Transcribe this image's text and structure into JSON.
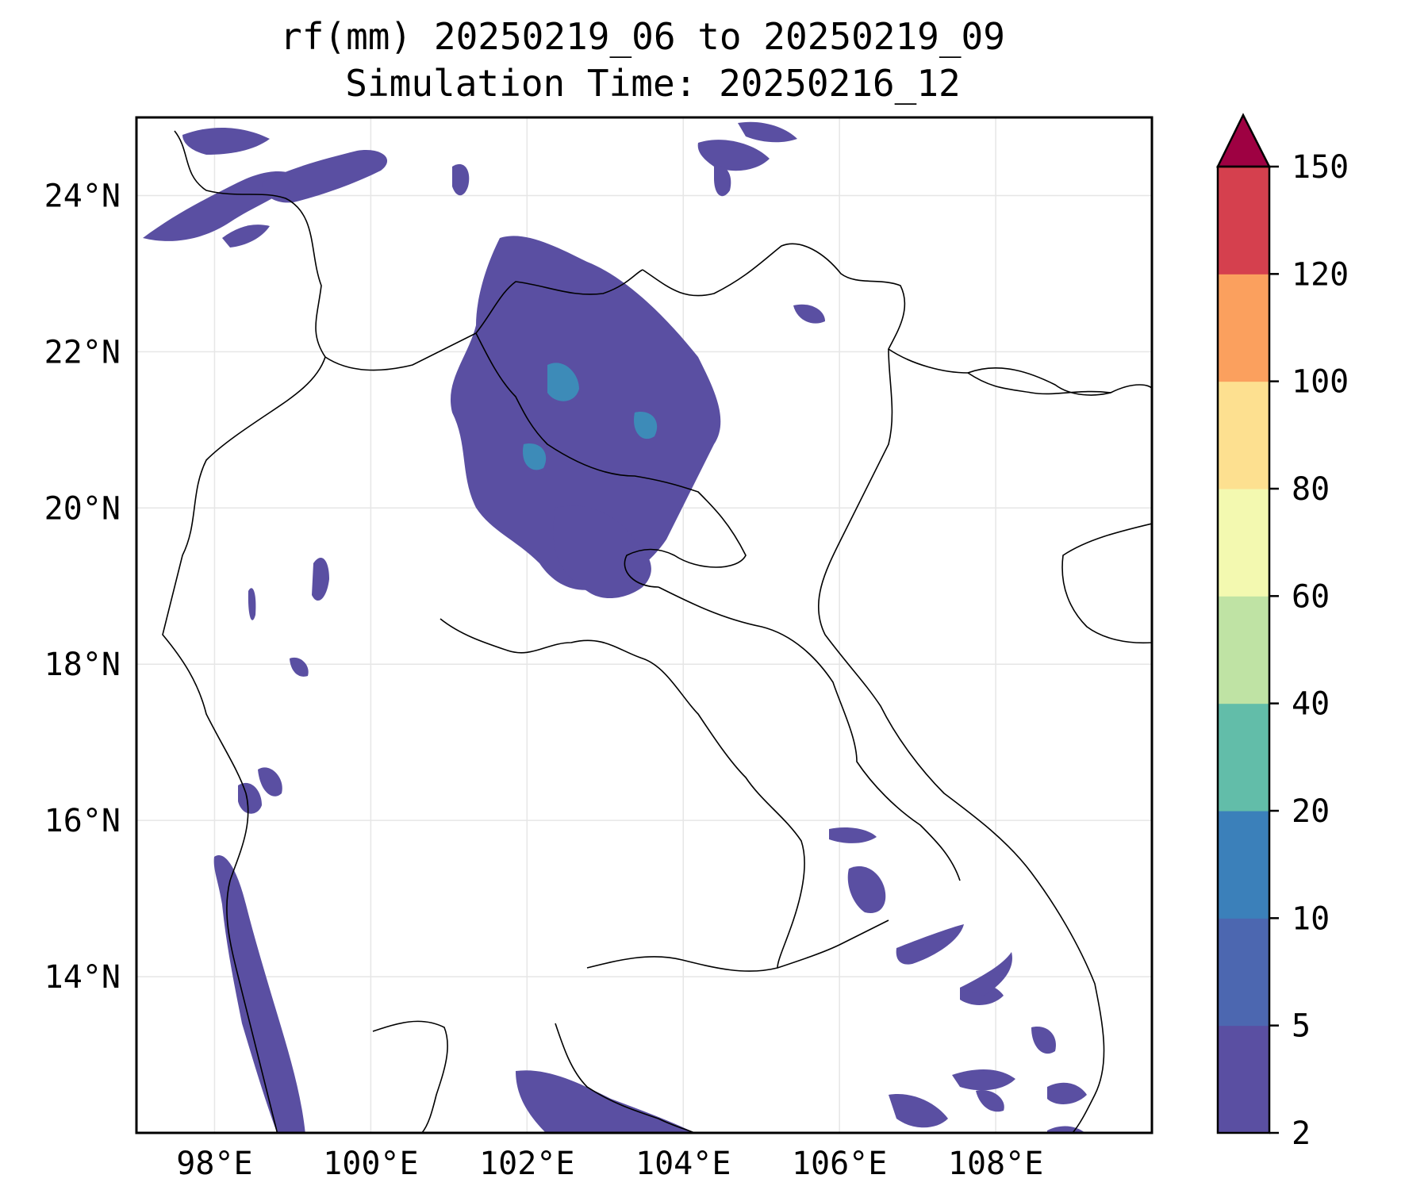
{
  "title": {
    "line1": "rf(mm) 20250219_06 to 20250219_09",
    "line2": "Simulation Time: 20250216_12"
  },
  "map": {
    "lon_range": [
      97.0,
      110.0
    ],
    "lat_range": [
      12.0,
      25.0
    ],
    "x_ticks": [
      "98°E",
      "100°E",
      "102°E",
      "104°E",
      "106°E",
      "108°E"
    ],
    "y_ticks": [
      "14°N",
      "16°N",
      "18°N",
      "20°N",
      "22°N",
      "24°N"
    ],
    "x_tick_values": [
      98,
      100,
      102,
      104,
      106,
      108
    ],
    "y_tick_values": [
      14,
      16,
      18,
      20,
      22,
      24
    ],
    "gridlines": true
  },
  "colorbar": {
    "levels": [
      2,
      5,
      10,
      20,
      40,
      60,
      80,
      100,
      120,
      150
    ],
    "labels": [
      "2",
      "5",
      "10",
      "20",
      "40",
      "60",
      "80",
      "100",
      "120",
      "150"
    ],
    "colors": [
      "#5a4fa2",
      "#4c67b0",
      "#3b80ba",
      "#62bda9",
      "#bfe3a4",
      "#f3f9b0",
      "#fde090",
      "#fba05e",
      "#d5404e"
    ],
    "extend_color": "#9e0142",
    "extend": "max"
  },
  "rain_colors": {
    "low": "#5a4fa2",
    "mid": "#4c67b0",
    "teal": "#3d8bb8"
  }
}
